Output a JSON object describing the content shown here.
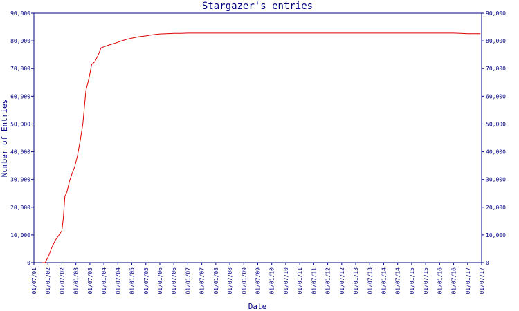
{
  "chart_data": {
    "type": "line",
    "title": "Stargazer's entries",
    "xlabel": "Date",
    "ylabel": "Number of Entries",
    "ylim": [
      0,
      90000
    ],
    "grid": false,
    "y_ticks": [
      {
        "value": 0,
        "label": "0"
      },
      {
        "value": 10000,
        "label": "10,000"
      },
      {
        "value": 20000,
        "label": "20,000"
      },
      {
        "value": 30000,
        "label": "30,000"
      },
      {
        "value": 40000,
        "label": "40,000"
      },
      {
        "value": 50000,
        "label": "50,000"
      },
      {
        "value": 60000,
        "label": "60,000"
      },
      {
        "value": 70000,
        "label": "70,000"
      },
      {
        "value": 80000,
        "label": "80,000"
      },
      {
        "value": 90000,
        "label": "90,000"
      }
    ],
    "x_ticks": [
      "01/07/01",
      "01/01/02",
      "01/07/02",
      "01/01/03",
      "01/07/03",
      "01/01/04",
      "01/07/04",
      "01/01/05",
      "01/07/05",
      "01/01/06",
      "01/07/06",
      "01/01/07",
      "01/07/07",
      "01/01/08",
      "01/07/08",
      "01/01/09",
      "01/07/09",
      "01/01/10",
      "01/07/10",
      "01/01/11",
      "01/07/11",
      "01/01/12",
      "01/07/12",
      "01/01/13",
      "01/07/13",
      "01/01/14",
      "01/07/14",
      "01/01/15",
      "01/07/15",
      "01/01/16",
      "01/07/16",
      "01/01/17",
      "01/07/17"
    ],
    "series": [
      {
        "color": "#dd0000",
        "x": [
          "2001-10-15",
          "2001-11-25",
          "2002-01-10",
          "2002-02-20",
          "2002-04-05",
          "2002-05-25",
          "2002-07-01",
          "2002-07-20",
          "2002-08-10",
          "2002-09-05",
          "2002-10-10",
          "2002-11-10",
          "2002-12-15",
          "2003-01-20",
          "2003-02-25",
          "2003-04-01",
          "2003-05-10",
          "2003-06-20",
          "2003-07-25",
          "2003-09-05",
          "2003-10-20",
          "2003-11-25",
          "2004-01-15",
          "2004-03-05",
          "2004-04-10",
          "2004-06-01",
          "2004-07-10",
          "2004-08-20",
          "2004-10-15",
          "2005-01-01",
          "2005-04-01",
          "2005-07-01",
          "2005-10-01",
          "2006-01-01",
          "2006-04-01",
          "2006-07-01",
          "2006-10-01",
          "2007-01-01",
          "2007-07-01",
          "2008-01-01",
          "2009-01-01",
          "2010-01-01",
          "2011-01-01",
          "2012-01-01",
          "2013-01-01",
          "2014-01-01",
          "2015-01-01",
          "2016-01-01",
          "2016-07-01",
          "2016-10-01",
          "2017-01-01",
          "2017-06-15"
        ],
        "values": [
          0,
          0,
          2500,
          5500,
          8000,
          10000,
          11500,
          16000,
          24000,
          25500,
          29500,
          32000,
          34500,
          38500,
          44000,
          50000,
          62000,
          66500,
          71500,
          72500,
          75000,
          77500,
          78000,
          78500,
          78800,
          79200,
          79600,
          80000,
          80500,
          81000,
          81500,
          81800,
          82200,
          82500,
          82600,
          82700,
          82700,
          82800,
          82800,
          82800,
          82800,
          82800,
          82800,
          82800,
          82800,
          82800,
          82800,
          82800,
          82800,
          82700,
          82600,
          82600
        ]
      }
    ]
  }
}
